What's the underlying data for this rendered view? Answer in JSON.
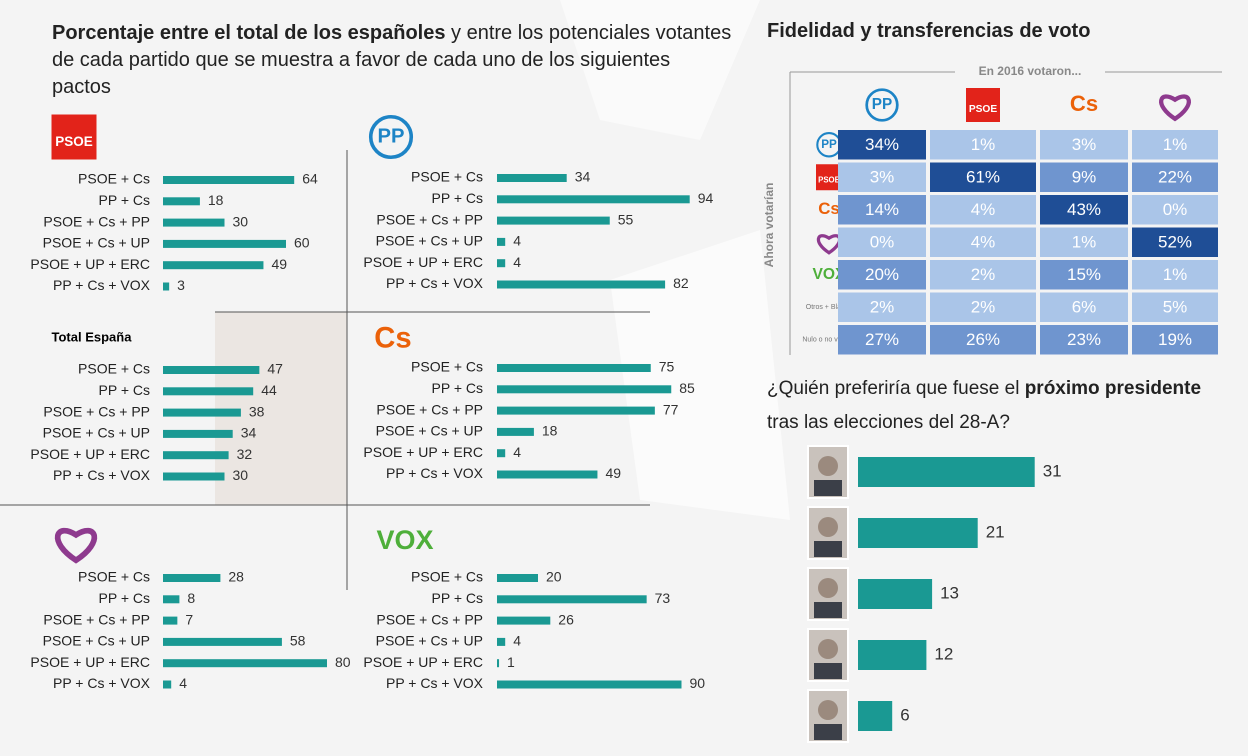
{
  "title": {
    "bold": "Porcentaje entre el total de los españoles",
    "rest": "y entre los potenciales votantes de cada partido que se muestra a favor de cada uno de los siguientes pactos"
  },
  "chart_data": [
    {
      "type": "bar",
      "title": "PSOE",
      "categories": [
        "PSOE + Cs",
        "PP + Cs",
        "PSOE + Cs + PP",
        "PSOE + Cs + UP",
        "PSOE + UP + ERC",
        "PP + Cs + VOX"
      ],
      "values": [
        64,
        18,
        30,
        60,
        49,
        3
      ],
      "color": "#1a9993"
    },
    {
      "type": "bar",
      "title": "PP",
      "categories": [
        "PSOE + Cs",
        "PP + Cs",
        "PSOE + Cs + PP",
        "PSOE + Cs + UP",
        "PSOE + UP + ERC",
        "PP + Cs + VOX"
      ],
      "values": [
        34,
        94,
        55,
        4,
        4,
        82
      ],
      "color": "#1a9993"
    },
    {
      "type": "bar",
      "title": "Total España",
      "categories": [
        "PSOE + Cs",
        "PP + Cs",
        "PSOE + Cs + PP",
        "PSOE + Cs + UP",
        "PSOE + UP + ERC",
        "PP + Cs + VOX"
      ],
      "values": [
        47,
        44,
        38,
        34,
        32,
        30
      ],
      "color": "#1a9993"
    },
    {
      "type": "bar",
      "title": "Cs",
      "categories": [
        "PSOE + Cs",
        "PP + Cs",
        "PSOE + Cs + PP",
        "PSOE + Cs + UP",
        "PSOE + UP + ERC",
        "PP + Cs + VOX"
      ],
      "values": [
        75,
        85,
        77,
        18,
        4,
        49
      ],
      "color": "#1a9993"
    },
    {
      "type": "bar",
      "title": null,
      "categories": [
        "PSOE + Cs",
        "PP + Cs",
        "PSOE + Cs + PP",
        "PSOE + Cs + UP",
        "PSOE + UP + ERC",
        "PP + Cs + VOX"
      ],
      "values": [
        28,
        8,
        7,
        58,
        80,
        4
      ],
      "color": "#1a9993"
    },
    {
      "type": "bar",
      "title": "VOX",
      "categories": [
        "PSOE + Cs",
        "PP + Cs",
        "PSOE + Cs + PP",
        "PSOE + Cs + UP",
        "PSOE + UP + ERC",
        "PP + Cs + VOX"
      ],
      "values": [
        20,
        73,
        26,
        4,
        1,
        90
      ],
      "color": "#1a9993"
    },
    {
      "type": "heatmap",
      "title": "Fidelidad y transferencias de voto",
      "x_label": "En 2016 votaron...",
      "y_label": "Ahora votarían",
      "columns": [
        "PP",
        "PSOE",
        "Cs",
        null
      ],
      "rows": [
        "PP",
        "PSOE",
        "Cs",
        null,
        "VOX",
        "Otros + Blanco",
        "Nulo o no votaría"
      ],
      "values": [
        [
          34,
          1,
          3,
          1
        ],
        [
          3,
          61,
          9,
          22
        ],
        [
          14,
          4,
          43,
          0
        ],
        [
          0,
          4,
          1,
          52
        ],
        [
          20,
          2,
          15,
          1
        ],
        [
          2,
          2,
          6,
          5
        ],
        [
          27,
          26,
          23,
          19
        ]
      ],
      "value_labels": [
        [
          "34%",
          "1%",
          "3%",
          "1%"
        ],
        [
          "3%",
          "61%",
          "9%",
          "22%"
        ],
        [
          "14%",
          "4%",
          "43%",
          "0%"
        ],
        [
          "0%",
          "4%",
          "1%",
          "52%"
        ],
        [
          "20%",
          "2%",
          "15%",
          "1%"
        ],
        [
          "2%",
          "2%",
          "6%",
          "5%"
        ],
        [
          "27%",
          "26%",
          "23%",
          "19%"
        ]
      ]
    },
    {
      "type": "bar",
      "title": {
        "before": "¿Quién preferiría que fuese el",
        "bold": "próximo presidente",
        "after": "tras las elecciones del 28-A?"
      },
      "categories": [
        null,
        null,
        null,
        null,
        null
      ],
      "values": [
        31,
        21,
        13,
        12,
        6
      ],
      "color": "#1a9993"
    }
  ]
}
